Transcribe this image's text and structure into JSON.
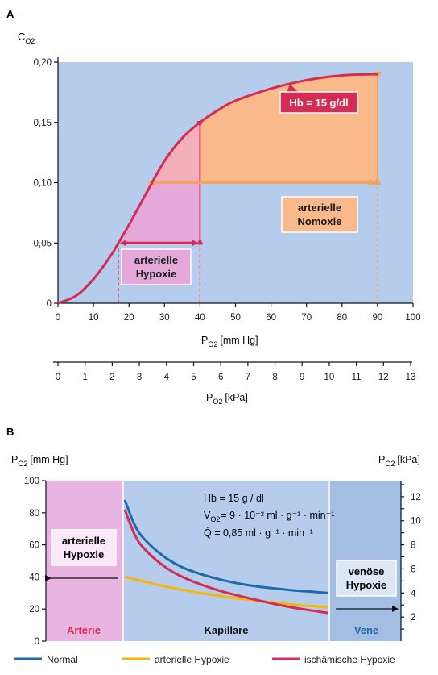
{
  "chart_data": [
    {
      "type": "line",
      "panel_label": "A",
      "ylabel": "C",
      "ylabel_sub": "O2",
      "xlabel_mmhg": "P",
      "xlabel_mmhg_sub": "O2",
      "xlabel_mmhg_unit": "[mm Hg]",
      "xlabel_kpa": "P",
      "xlabel_kpa_sub": "O2",
      "xlabel_kpa_unit": "[kPa]",
      "x_ticks_mmhg": [
        "0",
        "10",
        "20",
        "30",
        "40",
        "50",
        "60",
        "70",
        "80",
        "90",
        "100"
      ],
      "x_ticks_kpa": [
        "0",
        "1",
        "2",
        "3",
        "4",
        "5",
        "6",
        "7",
        "8",
        "9",
        "10",
        "11",
        "12",
        "13"
      ],
      "y_ticks": [
        "0",
        "0,05",
        "0,10",
        "0,15",
        "0,20"
      ],
      "xlim": [
        0,
        100
      ],
      "ylim": [
        0,
        0.2
      ],
      "series": [
        {
          "color": "#d42c55",
          "x": [
            0,
            5,
            10,
            15,
            17,
            20,
            25,
            30,
            35,
            40,
            45,
            50,
            60,
            70,
            80,
            90
          ],
          "y": [
            0,
            0.006,
            0.02,
            0.04,
            0.05,
            0.065,
            0.092,
            0.118,
            0.137,
            0.15,
            0.16,
            0.168,
            0.178,
            0.185,
            0.189,
            0.19
          ]
        }
      ],
      "annotations": {
        "hb_label": "Hb = 15 g/dl",
        "hypoxia_label_1": "arterielle",
        "hypoxia_label_2": "Hypoxie",
        "nomoxia_label_1": "arterielle",
        "nomoxia_label_2": "Nomoxie"
      },
      "colors": {
        "background": "#b6cced",
        "curve": "#d42c55",
        "nomoxia_fill": "#f9b98a",
        "hypoxia_fill": "#e4a8db",
        "orange_arrow": "#f4a35e"
      }
    },
    {
      "type": "line",
      "panel_label": "B",
      "ylabel_left": "P",
      "ylabel_left_sub": "O2",
      "ylabel_left_unit": "[mm Hg]",
      "ylabel_right": "P",
      "ylabel_right_sub": "O2",
      "ylabel_right_unit": "[kPa]",
      "y_ticks_left": [
        "0",
        "20",
        "40",
        "60",
        "80",
        "100"
      ],
      "y_ticks_right": [
        "2",
        "4",
        "6",
        "8",
        "10",
        "12"
      ],
      "ylim": [
        0,
        100
      ],
      "regions": [
        "Arterie",
        "Kapillare",
        "Vene"
      ],
      "formula_1": "Hb = 15 g / dl",
      "formula_2_lhs": "V̇",
      "formula_2_sub": "O2",
      "formula_2_rhs": "= 9 · 10⁻² ml · g⁻¹ · min⁻¹",
      "formula_3": "Q̇   = 0,85 ml · g⁻¹ · min⁻¹",
      "box_left_1": "arterielle",
      "box_left_2": "Hypoxie",
      "box_right_1": "venöse",
      "box_right_2": "Hypoxie",
      "series": [
        {
          "name": "Normal",
          "color": "#1f6aa8",
          "x": [
            0,
            0.05,
            0.1,
            0.2,
            0.3,
            0.45,
            0.6,
            0.8,
            1.0
          ],
          "y": [
            88,
            72,
            63,
            52,
            45,
            39,
            35,
            32,
            30
          ]
        },
        {
          "name": "arterielle Hypoxie",
          "color": "#f4b800",
          "x": [
            0,
            0.1,
            0.2,
            0.35,
            0.5,
            0.7,
            0.85,
            1.0
          ],
          "y": [
            40,
            37,
            34,
            30.5,
            27.5,
            24.5,
            22.5,
            21
          ]
        },
        {
          "name": "ischämische Hypoxie",
          "color": "#d42c55",
          "x": [
            0,
            0.05,
            0.1,
            0.2,
            0.3,
            0.45,
            0.6,
            0.8,
            1.0
          ],
          "y": [
            82,
            66,
            57,
            46,
            39,
            32,
            27,
            21.5,
            17.5
          ]
        }
      ],
      "colors": {
        "arterie": "#e8b4e2",
        "kapillare": "#b6cced",
        "vene": "#a3bde3"
      }
    }
  ]
}
